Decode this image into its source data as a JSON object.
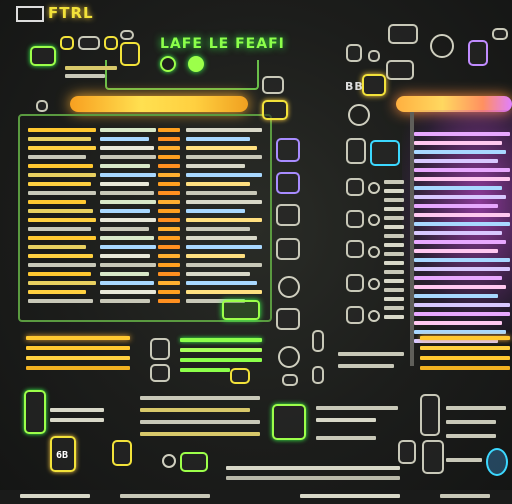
{
  "brand": {
    "label": "FTRL"
  },
  "header": {
    "title": "LAFE LE FEAFI"
  },
  "side_tag": {
    "label": "BB"
  },
  "bottom_left_badge": {
    "label": "6B"
  },
  "colors": {
    "accent_green": "#3cff4a",
    "accent_yellow": "#f2e23a",
    "accent_orange": "#ffb030",
    "accent_pink": "#e050ff",
    "background": "#1c1d1b"
  }
}
